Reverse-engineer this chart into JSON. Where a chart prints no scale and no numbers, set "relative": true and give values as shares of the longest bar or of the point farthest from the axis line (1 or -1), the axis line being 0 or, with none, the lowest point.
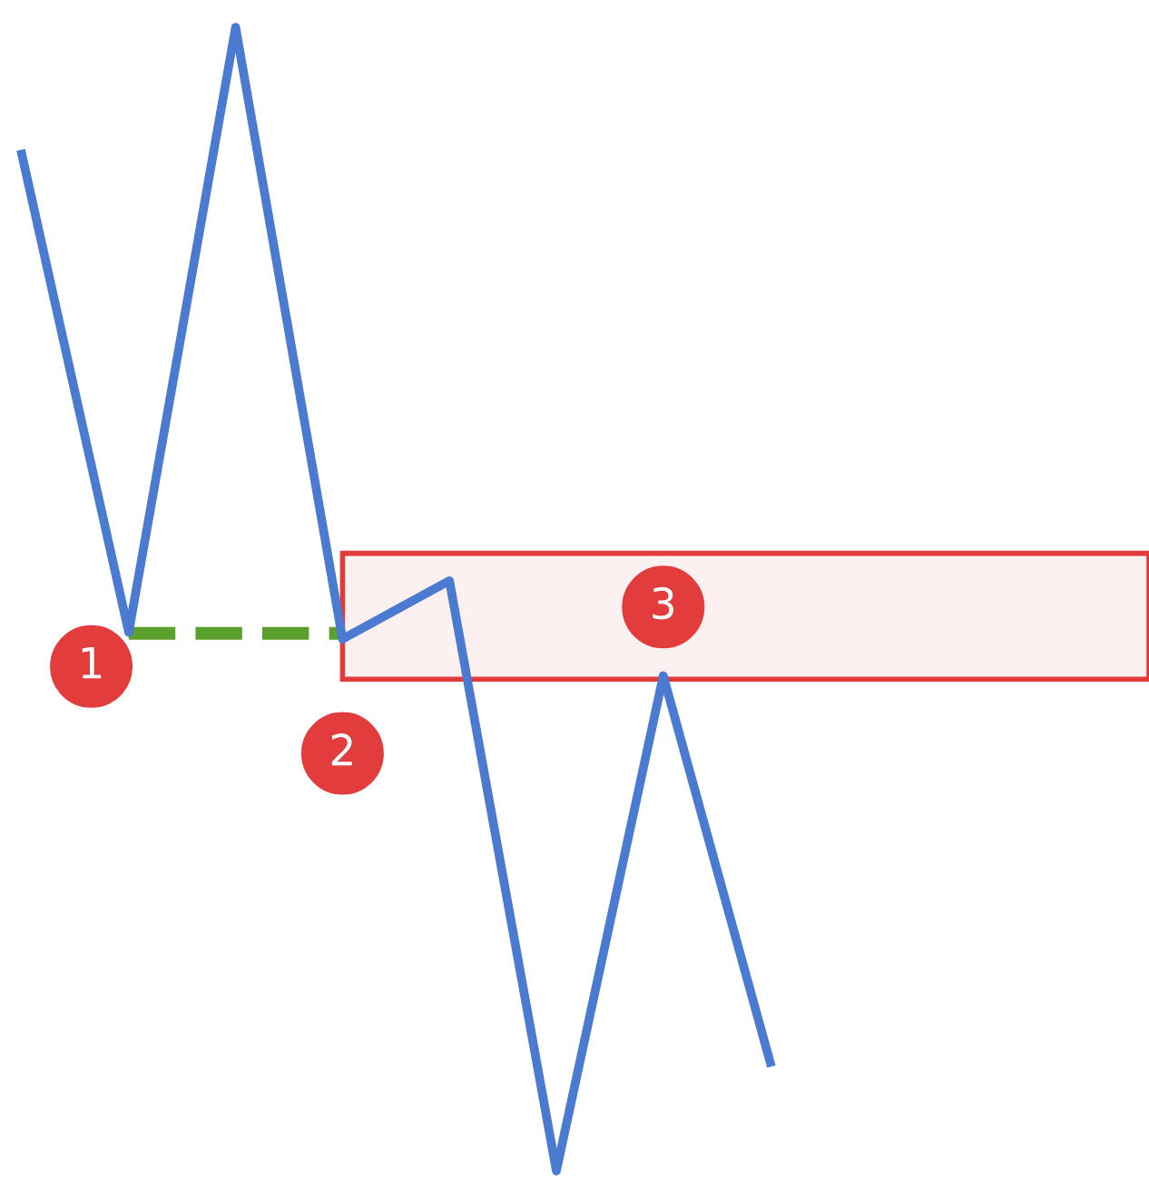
{
  "chart_data": {
    "type": "line",
    "relative": true,
    "categories": [
      null,
      null,
      null,
      null,
      null,
      null,
      null,
      null
    ],
    "series": [
      {
        "color": "#4a7bd0",
        "values": [
          0.889,
          0.471,
          1,
          0.465,
          0.516,
          0,
          0.433,
          0.095
        ]
      }
    ],
    "ref_lines": [
      {
        "axis": "y",
        "value": 0.47,
        "color": "#5aa02c",
        "line_style": "dashed"
      }
    ],
    "bands": [
      {
        "axis": "y",
        "from": 0.43,
        "to": 0.54,
        "color": "#e03a3a"
      }
    ],
    "annotations": [
      "1",
      "2",
      "3"
    ],
    "marker": "none",
    "line_style": "solid"
  }
}
